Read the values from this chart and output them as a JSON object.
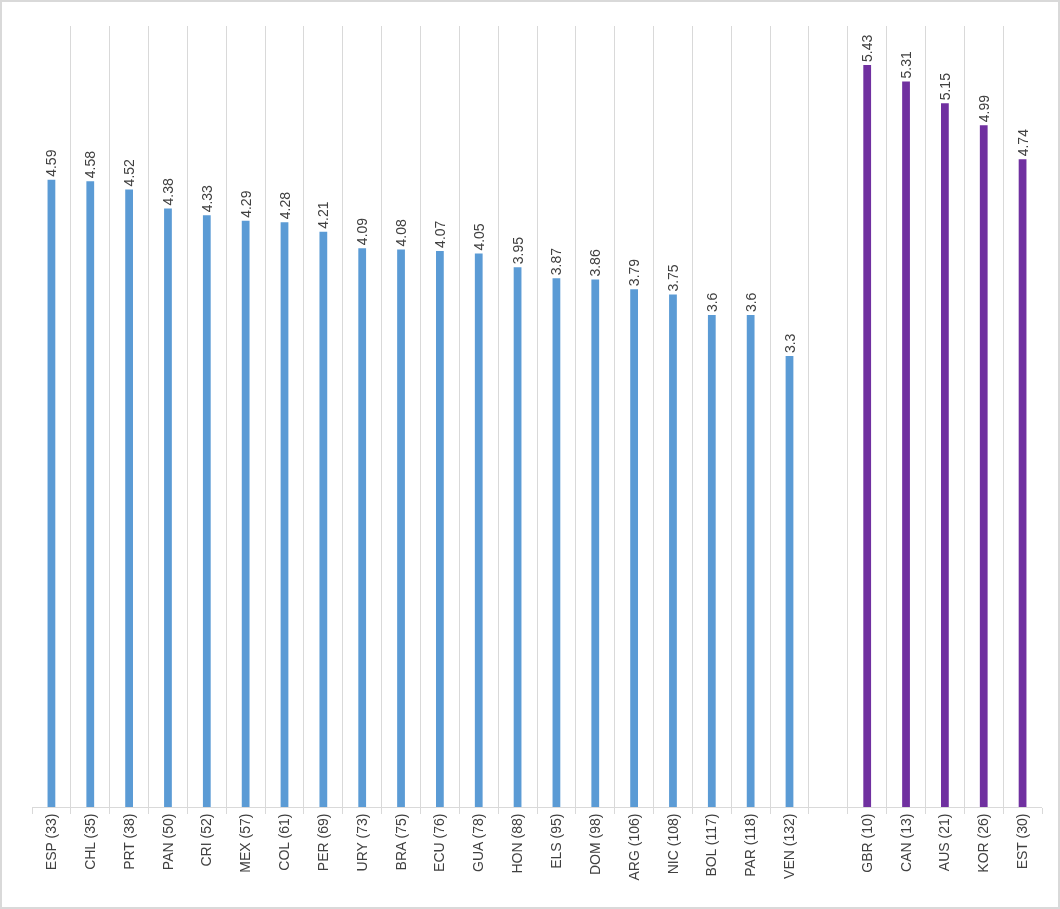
{
  "chart_data": {
    "type": "bar",
    "categories": [
      "ESP (33)",
      "CHL (35)",
      "PRT (38)",
      "PAN (50)",
      "CRI (52)",
      "MEX (57)",
      "COL (61)",
      "PER (69)",
      "URY (73)",
      "BRA (75)",
      "ECU (76)",
      "GUA (78)",
      "HON (88)",
      "ELS (95)",
      "DOM (98)",
      "ARG (106)",
      "NIC (108)",
      "BOL (117)",
      "PAR (118)",
      "VEN (132)",
      null,
      "GBR (10)",
      "CAN (13)",
      "AUS (21)",
      "KOR (26)",
      "EST (30)"
    ],
    "values": [
      4.59,
      4.58,
      4.52,
      4.38,
      4.33,
      4.29,
      4.28,
      4.21,
      4.09,
      4.08,
      4.07,
      4.05,
      3.95,
      3.87,
      3.86,
      3.79,
      3.75,
      3.6,
      3.6,
      3.3,
      null,
      5.43,
      5.31,
      5.15,
      4.99,
      4.74
    ],
    "value_labels": [
      "4.59",
      "4.58",
      "4.52",
      "4.38",
      "4.33",
      "4.29",
      "4.28",
      "4.21",
      "4.09",
      "4.08",
      "4.07",
      "4.05",
      "3.95",
      "3.87",
      "3.86",
      "3.79",
      "3.75",
      "3.6",
      "3.6",
      "3.3",
      null,
      "5.43",
      "5.31",
      "5.15",
      "4.99",
      "4.74"
    ],
    "colors": [
      "#5b9bd5",
      "#5b9bd5",
      "#5b9bd5",
      "#5b9bd5",
      "#5b9bd5",
      "#5b9bd5",
      "#5b9bd5",
      "#5b9bd5",
      "#5b9bd5",
      "#5b9bd5",
      "#5b9bd5",
      "#5b9bd5",
      "#5b9bd5",
      "#5b9bd5",
      "#5b9bd5",
      "#5b9bd5",
      "#5b9bd5",
      "#5b9bd5",
      "#5b9bd5",
      "#5b9bd5",
      null,
      "#7030a0",
      "#7030a0",
      "#7030a0",
      "#7030a0",
      "#7030a0"
    ],
    "grid": "x",
    "tick_labels": "x"
  }
}
